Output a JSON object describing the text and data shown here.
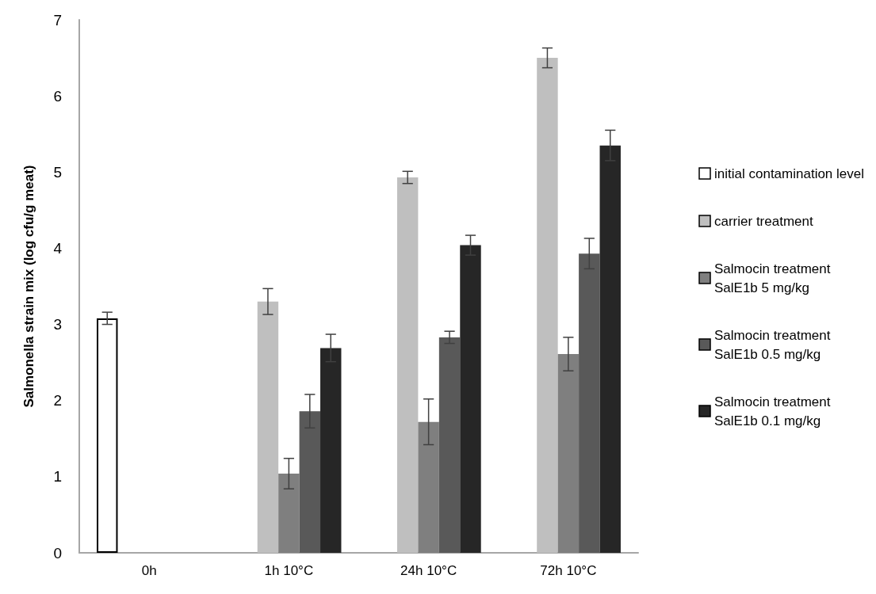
{
  "chart_data": {
    "type": "bar",
    "ylabel": "Salmonella strain mix (log cfu/g meat)",
    "categories": [
      "0h",
      "1h 10°C",
      "24h 10°C",
      "72h 10°C"
    ],
    "series": [
      {
        "name": "initial contamination level",
        "color": "#ffffff",
        "values": [
          3.08,
          null,
          null,
          null
        ],
        "errors": [
          0.08,
          null,
          null,
          null
        ]
      },
      {
        "name": "carrier treatment",
        "color": "#bfbfbf",
        "values": [
          null,
          3.3,
          4.93,
          6.5
        ],
        "errors": [
          null,
          0.17,
          0.08,
          0.13
        ]
      },
      {
        "name": "Salmocin treatment\nSalE1b 5 mg/kg",
        "color": "#7f7f7f",
        "values": [
          null,
          1.04,
          1.72,
          2.61
        ],
        "errors": [
          null,
          0.2,
          0.3,
          0.22
        ]
      },
      {
        "name": "Salmocin treatment\nSalE1b 0.5 mg/kg",
        "color": "#595959",
        "values": [
          null,
          1.86,
          2.83,
          3.93
        ],
        "errors": [
          null,
          0.22,
          0.08,
          0.2
        ]
      },
      {
        "name": "Salmocin treatment\nSalE1b 0.1 mg/kg",
        "color": "#262626",
        "values": [
          null,
          2.69,
          4.04,
          5.35
        ],
        "errors": [
          null,
          0.18,
          0.13,
          0.2
        ]
      }
    ],
    "ylim": [
      0,
      7
    ],
    "yticks": [
      0,
      1,
      2,
      3,
      4,
      5,
      6,
      7
    ],
    "grid": false,
    "legend": "right"
  }
}
